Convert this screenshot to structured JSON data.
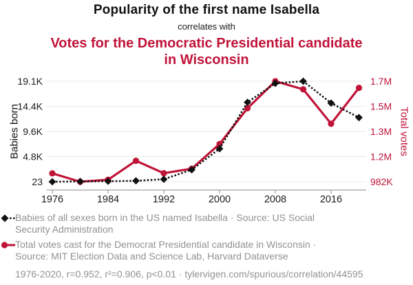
{
  "header": {
    "title": "Popularity of the first name Isabella",
    "connector": "correlates with",
    "correlate_title": "Votes for the Democratic Presidential candidate in Wisconsin"
  },
  "colors": {
    "accent_red": "#c01338",
    "series_black": "#111111",
    "muted_text": "#919191",
    "gridline": "#e8e8e8",
    "axis_line": "#888888",
    "tick_text": "#1a1a1a"
  },
  "chart_data": {
    "type": "line",
    "x": [
      1976,
      1980,
      1984,
      1988,
      1992,
      1996,
      2000,
      2004,
      2008,
      2012,
      2016,
      2020
    ],
    "x_tick_labels": [
      "1976",
      "1984",
      "1992",
      "2000",
      "2008",
      "2016"
    ],
    "grid": true,
    "left_axis": {
      "title": "Babies born",
      "min": 23,
      "max": 19100,
      "tick_labels_top_to_bottom": [
        "19.1K",
        "14.4K",
        "9.6K",
        "4.8K",
        "23"
      ]
    },
    "right_axis": {
      "title": "Total votes",
      "min": 982000,
      "max": 1677000,
      "tick_labels_top_to_bottom": [
        "1.7M",
        "1.5M",
        "1.3M",
        "1.2M",
        "982K"
      ]
    },
    "series": [
      {
        "name": "Babies of all sexes born in the US named Isabella",
        "axis": "left",
        "line_style": "dashed",
        "marker": "diamond",
        "color": "#111111",
        "values": [
          23,
          80,
          120,
          200,
          500,
          2300,
          6300,
          15100,
          18700,
          19100,
          14950,
          12200
        ]
      },
      {
        "name": "Total votes cast for the Democrat Presidential candidate in Wisconsin",
        "axis": "right",
        "line_style": "solid",
        "marker": "circle",
        "color": "#c01338",
        "values": [
          1040000,
          982000,
          996000,
          1127000,
          1041000,
          1072000,
          1243000,
          1490000,
          1677000,
          1621000,
          1383000,
          1631000
        ]
      }
    ]
  },
  "legend": {
    "entries": [
      {
        "label": "Babies of all sexes born in the US named Isabella · Source: US Social Security Administration",
        "marker": "black-diamond-dashed"
      },
      {
        "label": "Total votes cast for the Democrat Presidential candidate in Wisconsin · Source: MIT Election Data and Science Lab, Harvard Dataverse",
        "marker": "red-circle-solid"
      }
    ]
  },
  "footer": {
    "stats_line": "1976-2020, r=0.952, r²=0.906, p<0.01 · tylervigen.com/spurious/correlation/44595"
  }
}
